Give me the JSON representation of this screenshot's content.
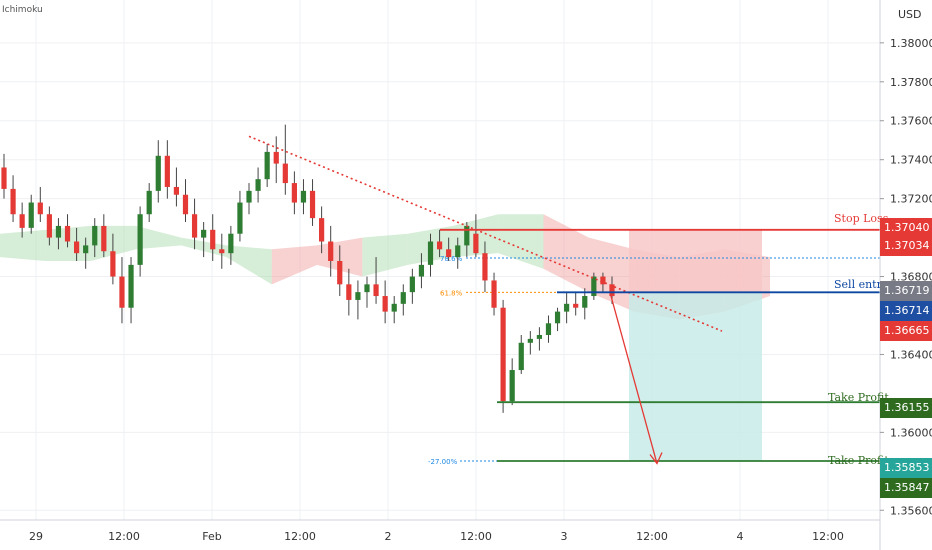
{
  "chart_data": {
    "type": "candlestick",
    "indicator_label": "Ichimoku",
    "currency": "USD",
    "y_axis": {
      "range": [
        1.3555,
        1.3822
      ],
      "ticks": [
        "1.38000",
        "1.37800",
        "1.37600",
        "1.37400",
        "1.37200",
        "1.36800",
        "1.36400",
        "1.36000",
        "1.35600"
      ]
    },
    "x_axis": {
      "ticks": [
        {
          "label": "29",
          "px": 36
        },
        {
          "label": "12:00",
          "px": 124
        },
        {
          "label": "Feb",
          "px": 212
        },
        {
          "label": "12:00",
          "px": 300
        },
        {
          "label": "2",
          "px": 388
        },
        {
          "label": "12:00",
          "px": 476
        },
        {
          "label": "3",
          "px": 564
        },
        {
          "label": "12:00",
          "px": 652
        },
        {
          "label": "4",
          "px": 740
        },
        {
          "label": "12:00",
          "px": 828
        }
      ]
    },
    "candles": [
      [
        1.3736,
        1.3743,
        1.372,
        1.3725
      ],
      [
        1.3725,
        1.3732,
        1.3708,
        1.3712
      ],
      [
        1.3712,
        1.3718,
        1.37,
        1.3705
      ],
      [
        1.3705,
        1.3722,
        1.3702,
        1.3718
      ],
      [
        1.3718,
        1.3726,
        1.3708,
        1.3712
      ],
      [
        1.3712,
        1.3716,
        1.3696,
        1.37
      ],
      [
        1.37,
        1.371,
        1.3694,
        1.3706
      ],
      [
        1.3706,
        1.3712,
        1.3695,
        1.3698
      ],
      [
        1.3698,
        1.3705,
        1.3688,
        1.3692
      ],
      [
        1.3692,
        1.37,
        1.3684,
        1.3696
      ],
      [
        1.3696,
        1.371,
        1.369,
        1.3706
      ],
      [
        1.3706,
        1.3712,
        1.369,
        1.3693
      ],
      [
        1.3693,
        1.3702,
        1.3676,
        1.368
      ],
      [
        1.368,
        1.369,
        1.3656,
        1.3664
      ],
      [
        1.3664,
        1.369,
        1.3656,
        1.3686
      ],
      [
        1.3686,
        1.3716,
        1.368,
        1.3712
      ],
      [
        1.3712,
        1.3728,
        1.3708,
        1.3724
      ],
      [
        1.3724,
        1.375,
        1.3718,
        1.3742
      ],
      [
        1.3742,
        1.375,
        1.372,
        1.3726
      ],
      [
        1.3726,
        1.3736,
        1.3716,
        1.3722
      ],
      [
        1.3722,
        1.373,
        1.3708,
        1.3712
      ],
      [
        1.3712,
        1.372,
        1.3694,
        1.37
      ],
      [
        1.37,
        1.3708,
        1.369,
        1.3704
      ],
      [
        1.3704,
        1.3712,
        1.3688,
        1.3694
      ],
      [
        1.3694,
        1.3702,
        1.3684,
        1.3692
      ],
      [
        1.3692,
        1.3706,
        1.3686,
        1.3702
      ],
      [
        1.3702,
        1.3724,
        1.3698,
        1.3718
      ],
      [
        1.3718,
        1.3728,
        1.3712,
        1.3724
      ],
      [
        1.3724,
        1.3736,
        1.3718,
        1.373
      ],
      [
        1.373,
        1.3748,
        1.3726,
        1.3744
      ],
      [
        1.3744,
        1.3752,
        1.3728,
        1.3738
      ],
      [
        1.3738,
        1.3758,
        1.3722,
        1.3728
      ],
      [
        1.3728,
        1.3734,
        1.3712,
        1.3718
      ],
      [
        1.3718,
        1.373,
        1.3712,
        1.3724
      ],
      [
        1.3724,
        1.373,
        1.3706,
        1.371
      ],
      [
        1.371,
        1.3716,
        1.3692,
        1.3698
      ],
      [
        1.3698,
        1.3706,
        1.368,
        1.3688
      ],
      [
        1.3688,
        1.3696,
        1.367,
        1.3676
      ],
      [
        1.3676,
        1.3684,
        1.366,
        1.3668
      ],
      [
        1.3668,
        1.3678,
        1.3658,
        1.3672
      ],
      [
        1.3672,
        1.368,
        1.3664,
        1.3676
      ],
      [
        1.3676,
        1.369,
        1.3666,
        1.367
      ],
      [
        1.367,
        1.3678,
        1.3656,
        1.3662
      ],
      [
        1.3662,
        1.367,
        1.3656,
        1.3666
      ],
      [
        1.3666,
        1.3676,
        1.366,
        1.3672
      ],
      [
        1.3672,
        1.3684,
        1.3666,
        1.368
      ],
      [
        1.368,
        1.3692,
        1.3674,
        1.3686
      ],
      [
        1.3686,
        1.3702,
        1.368,
        1.3698
      ],
      [
        1.3698,
        1.3704,
        1.369,
        1.3694
      ],
      [
        1.3694,
        1.37,
        1.3688,
        1.369
      ],
      [
        1.369,
        1.37,
        1.3684,
        1.3696
      ],
      [
        1.3696,
        1.3708,
        1.369,
        1.3706
      ],
      [
        1.3702,
        1.3712,
        1.369,
        1.3692
      ],
      [
        1.3692,
        1.3698,
        1.3672,
        1.3678
      ],
      [
        1.3678,
        1.3682,
        1.366,
        1.3664
      ],
      [
        1.3664,
        1.3668,
        1.361,
        1.3616
      ],
      [
        1.3616,
        1.3638,
        1.3614,
        1.3632
      ],
      [
        1.3632,
        1.365,
        1.363,
        1.3646
      ],
      [
        1.3646,
        1.3652,
        1.364,
        1.3648
      ],
      [
        1.3648,
        1.3654,
        1.3642,
        1.365
      ],
      [
        1.365,
        1.366,
        1.3646,
        1.3656
      ],
      [
        1.3656,
        1.3664,
        1.3652,
        1.3662
      ],
      [
        1.3662,
        1.3672,
        1.3656,
        1.3666
      ],
      [
        1.3666,
        1.3672,
        1.366,
        1.3664
      ],
      [
        1.3664,
        1.3674,
        1.3658,
        1.367
      ],
      [
        1.367,
        1.3682,
        1.3668,
        1.368
      ],
      [
        1.368,
        1.3682,
        1.3672,
        1.3676
      ],
      [
        1.3676,
        1.368,
        1.3666,
        1.367
      ]
    ],
    "ichimoku_cloud": {
      "upper": [
        1.3702,
        1.3704,
        1.3706,
        1.3706,
        1.37,
        1.3696,
        1.3694,
        1.3696,
        1.37,
        1.3702,
        1.3706,
        1.3712,
        1.3712,
        1.37,
        1.3694,
        1.369,
        1.3694,
        1.369
      ],
      "lower": [
        1.369,
        1.3688,
        1.3688,
        1.3694,
        1.3696,
        1.369,
        1.3676,
        1.3686,
        1.368,
        1.3686,
        1.369,
        1.3692,
        1.3684,
        1.3672,
        1.3662,
        1.3658,
        1.3662,
        1.367
      ],
      "green_color": "#a5d6a7",
      "red_color": "#ef9a9a"
    },
    "trendline": {
      "from": [
        1.3752,
        "Feb 1 ~03:00"
      ],
      "to": [
        1.3652,
        "Feb 3 ~21:00"
      ],
      "color": "#e53935",
      "style": "dotted"
    },
    "fibonacci": [
      {
        "label": "78.6%",
        "price": 1.36895,
        "color": "#1e88e5"
      },
      {
        "label": "61.8%",
        "price": 1.36719,
        "color": "#fb8c00"
      },
      {
        "label": "-27.00%",
        "price": 1.35853,
        "color": "#1e88e5"
      }
    ],
    "levels": [
      {
        "name": "Stop Loss",
        "price": 1.3704,
        "color": "#e53935"
      },
      {
        "name": "Sell entry",
        "price": 1.36719,
        "color": "#0d47a1"
      },
      {
        "name": "Take Profit",
        "price": 1.36155,
        "color": "#2e7d32"
      },
      {
        "name": "Take Profit",
        "price": 1.35853,
        "color": "#2e7d32"
      }
    ],
    "price_tags": [
      {
        "text": "1.37040",
        "color": "#e53935"
      },
      {
        "text": "1.37034",
        "color": "#e53935"
      },
      {
        "text": "1.36719",
        "color": "#787b86"
      },
      {
        "text": "1.36714",
        "color": "#1e4fa3"
      },
      {
        "text": "1.36665",
        "color": "#e53935"
      },
      {
        "text": "1.36155",
        "color": "#2e6b1f"
      },
      {
        "text": "1.35853",
        "color": "#26a69a"
      },
      {
        "text": "1.35847",
        "color": "#2e6b1f"
      }
    ],
    "position": {
      "entry": 1.36719,
      "stop": 1.3704,
      "target": 1.35853,
      "risk_color": "#f8c8c8",
      "reward_color": "#c8ebe7"
    },
    "projection_arrow": {
      "color": "#e53935"
    },
    "colors": {
      "bull": "#2e7d32",
      "bear": "#e53935",
      "grid": "#eef0f3",
      "axis_text": "#333333"
    }
  }
}
